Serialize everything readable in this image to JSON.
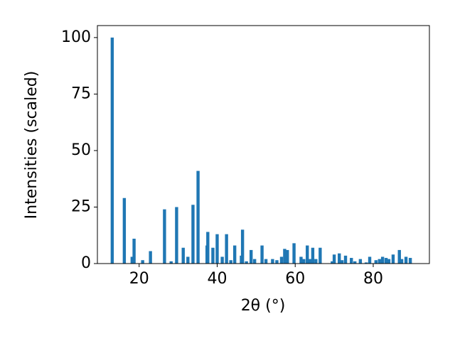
{
  "chart_data": {
    "type": "bar",
    "x_label": "2θ (°)",
    "y_label": "Intensities (scaled)",
    "x": [
      13.1,
      16.2,
      18.2,
      18.7,
      20.9,
      22.9,
      26.5,
      28.2,
      29.6,
      31.3,
      32.5,
      33.8,
      35.1,
      37.4,
      37.6,
      38.9,
      40.0,
      41.3,
      42.4,
      43.5,
      44.5,
      46.2,
      46.5,
      47.5,
      48.7,
      49.6,
      51.5,
      52.5,
      54.2,
      55.3,
      56.5,
      57.3,
      58.0,
      59.7,
      61.5,
      62.2,
      63.1,
      63.8,
      64.5,
      65.3,
      66.4,
      69.5,
      70.0,
      71.3,
      72.0,
      72.9,
      74.4,
      75.3,
      76.7,
      78.2,
      79.1,
      80.7,
      81.6,
      82.4,
      83.3,
      84.0,
      85.1,
      86.7,
      87.3,
      88.4,
      89.5
    ],
    "values": [
      100,
      29,
      3,
      11,
      1.5,
      5.5,
      24,
      1,
      25,
      7,
      3,
      26,
      41,
      8,
      14,
      7,
      13,
      3,
      13,
      1.5,
      8,
      3.5,
      15,
      1,
      6,
      2,
      8,
      2,
      2,
      1.5,
      3,
      6.5,
      6,
      9,
      3,
      2,
      8,
      2,
      7,
      2,
      7,
      1,
      4,
      4.5,
      1.5,
      3.5,
      2.5,
      1,
      2,
      0.5,
      3,
      1.5,
      2,
      3,
      2.5,
      2,
      4,
      6,
      2,
      3,
      2.5
    ],
    "color": "#1f77b4",
    "xlim": [
      9.3,
      94.4
    ],
    "xticks": [
      20,
      40,
      60,
      80
    ],
    "ylim": [
      0,
      105.3
    ],
    "yticks": [
      0,
      25,
      50,
      75,
      100
    ]
  }
}
